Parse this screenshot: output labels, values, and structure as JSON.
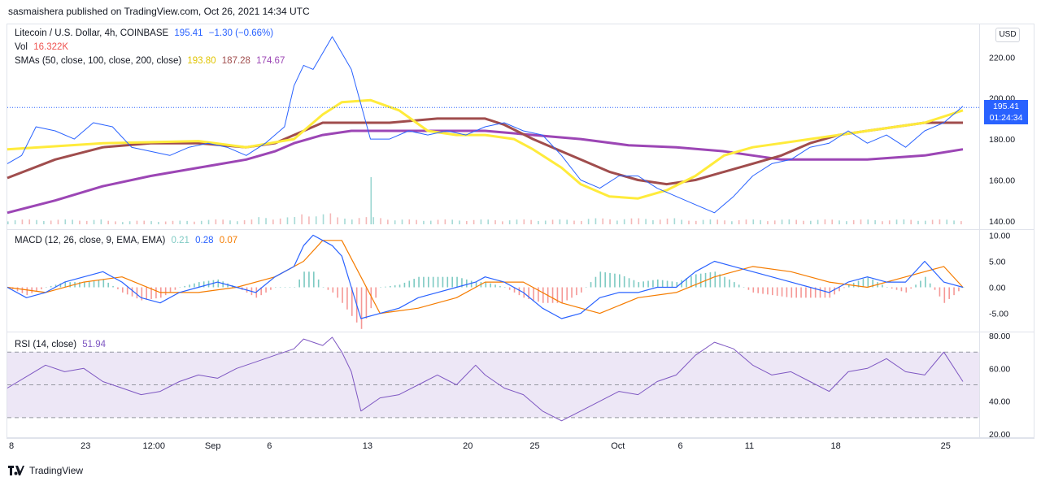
{
  "header": {
    "published": "sasmaishera published on TradingView.com, Oct 26, 2021 14:34 UTC"
  },
  "footer": {
    "brand": "TradingView"
  },
  "price_legend": {
    "symbol": "Litecoin / U.S. Dollar, 4h, COINBASE",
    "last": "195.41",
    "change": "−1.30 (−0.66%)",
    "vol_label": "Vol",
    "vol_value": "16.322K",
    "sma_label": "SMAs (50, close, 100, close, 200, close)",
    "sma50": "193.80",
    "sma100": "187.28",
    "sma200": "174.67"
  },
  "macd_legend": {
    "label": "MACD (12, 26, close, 9, EMA, EMA)",
    "hist": "0.21",
    "macd": "0.28",
    "signal": "0.07"
  },
  "rsi_legend": {
    "label": "RSI (14, close)",
    "value": "51.94"
  },
  "currency_button": "USD",
  "price_tag": {
    "price": "195.41",
    "countdown": "01:24:34"
  },
  "colors": {
    "price_line": "#2962ff",
    "sma50": "#ffeb3b",
    "sma100": "#a04d4d",
    "sma200": "#9c46b5",
    "macd_line": "#2962ff",
    "signal_line": "#f57c00",
    "hist_pos": "#26a69a",
    "hist_neg": "#ef5350",
    "rsi_line": "#7e57c2",
    "rsi_band": "#ede7f6"
  },
  "chart_data": {
    "type": "line",
    "x_tick_labels": [
      "8",
      "23",
      "12:00",
      "Sep",
      "6",
      "13",
      "20",
      "25",
      "Oct",
      "6",
      "11",
      "18",
      "25"
    ],
    "price_axis": {
      "ticks": [
        "220.00",
        "200.00",
        "180.00",
        "160.00",
        "140.00"
      ],
      "range": [
        136,
        236
      ]
    },
    "macd_axis": {
      "ticks": [
        "10.00",
        "5.00",
        "0.00",
        "-5.00"
      ],
      "range": [
        -8.5,
        11
      ]
    },
    "rsi_axis": {
      "ticks": [
        "80.00",
        "60.00",
        "40.00",
        "20.00"
      ],
      "range": [
        18,
        82
      ],
      "bands": [
        30,
        50,
        70
      ]
    },
    "series": [
      {
        "name": "Litecoin / U.S. Dollar",
        "pane": "price",
        "x": [
          0,
          3,
          6,
          10,
          14,
          18,
          22,
          26,
          30,
          34,
          38,
          42,
          46,
          50,
          54,
          58,
          60,
          62,
          64,
          66,
          68,
          70,
          72,
          76,
          80,
          84,
          88,
          92,
          96,
          100,
          104,
          108,
          112,
          116,
          120,
          124,
          128,
          132,
          136,
          140,
          144,
          148,
          152,
          156,
          160,
          164,
          168,
          172,
          176,
          180,
          184,
          188,
          192,
          196,
          200
        ],
        "values": [
          168,
          172,
          186,
          184,
          180,
          188,
          186,
          176,
          174,
          172,
          176,
          178,
          176,
          172,
          178,
          186,
          206,
          216,
          214,
          222,
          230,
          222,
          214,
          180,
          180,
          184,
          182,
          184,
          182,
          186,
          188,
          184,
          182,
          172,
          160,
          156,
          162,
          162,
          156,
          152,
          148,
          144,
          152,
          162,
          168,
          170,
          176,
          178,
          184,
          178,
          182,
          176,
          184,
          188,
          196
        ]
      },
      {
        "name": "SMA 50",
        "pane": "price",
        "x": [
          0,
          20,
          40,
          50,
          60,
          66,
          70,
          76,
          82,
          88,
          94,
          100,
          106,
          110,
          116,
          120,
          126,
          132,
          138,
          144,
          150,
          156,
          162,
          168,
          174,
          180,
          186,
          192,
          200
        ],
        "values": [
          175,
          178,
          179,
          176,
          180,
          192,
          198,
          199,
          194,
          184,
          182,
          182,
          180,
          175,
          166,
          158,
          152,
          151,
          155,
          162,
          172,
          176,
          178,
          180,
          182,
          184,
          186,
          188,
          194
        ]
      },
      {
        "name": "SMA 100",
        "pane": "price",
        "x": [
          0,
          10,
          20,
          30,
          40,
          50,
          56,
          60,
          66,
          72,
          80,
          90,
          100,
          104,
          110,
          116,
          120,
          126,
          132,
          138,
          144,
          150,
          156,
          162,
          168,
          174,
          180,
          186,
          192,
          200
        ],
        "values": [
          161,
          170,
          176,
          178,
          178,
          176,
          178,
          182,
          188,
          188,
          188,
          190,
          190,
          187,
          180,
          174,
          170,
          164,
          160,
          158,
          160,
          164,
          168,
          172,
          178,
          182,
          184,
          186,
          188,
          188
        ]
      },
      {
        "name": "SMA 200",
        "pane": "price",
        "x": [
          0,
          10,
          20,
          30,
          40,
          50,
          56,
          60,
          66,
          72,
          80,
          90,
          100,
          110,
          120,
          130,
          140,
          150,
          156,
          162,
          168,
          174,
          180,
          186,
          192,
          200
        ],
        "values": [
          144,
          150,
          157,
          162,
          166,
          170,
          174,
          178,
          182,
          184,
          184,
          184,
          184,
          182,
          180,
          177,
          176,
          174,
          172,
          170,
          170,
          170,
          170,
          171,
          172,
          175
        ]
      },
      {
        "name": "Volume",
        "pane": "price",
        "x": [
          0,
          20,
          40,
          52,
          60,
          68,
          80,
          100,
          120,
          140,
          160,
          180,
          200
        ],
        "values": [
          2,
          1.5,
          2,
          3,
          4.5,
          3,
          2,
          2,
          2.5,
          2,
          2,
          2,
          1.5
        ]
      },
      {
        "name": "MACD",
        "pane": "macd",
        "x": [
          0,
          4,
          8,
          12,
          16,
          20,
          24,
          28,
          32,
          36,
          40,
          44,
          48,
          52,
          56,
          60,
          62,
          64,
          66,
          68,
          70,
          72,
          74,
          78,
          82,
          86,
          90,
          94,
          98,
          100,
          104,
          108,
          112,
          116,
          120,
          124,
          128,
          132,
          136,
          140,
          144,
          148,
          152,
          156,
          160,
          164,
          168,
          172,
          176,
          180,
          184,
          188,
          192,
          196,
          200
        ],
        "values": [
          0,
          -2,
          -1,
          1,
          2,
          3,
          1,
          -2,
          -3,
          -1,
          0,
          1,
          0,
          -1,
          2,
          4,
          8,
          10,
          9,
          8,
          6,
          0,
          -6,
          -5,
          -4,
          -2,
          -1,
          0,
          1,
          2,
          1,
          -1,
          -4,
          -6,
          -5,
          -2,
          -1,
          -1,
          0,
          0,
          3,
          5,
          4,
          3,
          2,
          1,
          0,
          -1,
          1,
          2,
          1,
          1,
          5,
          1,
          0
        ]
      },
      {
        "name": "Signal",
        "pane": "macd",
        "x": [
          0,
          8,
          16,
          24,
          32,
          40,
          48,
          56,
          62,
          66,
          70,
          74,
          78,
          86,
          94,
          100,
          108,
          116,
          124,
          132,
          140,
          148,
          156,
          164,
          172,
          180,
          188,
          196,
          200
        ],
        "values": [
          0,
          -1,
          1,
          2,
          -1,
          -1,
          0,
          2,
          5,
          9,
          9,
          2,
          -5,
          -4,
          -2,
          1,
          1,
          -3,
          -5,
          -2,
          -1,
          2,
          4,
          3,
          1,
          0,
          2,
          4,
          0
        ]
      },
      {
        "name": "RSI",
        "pane": "rsi",
        "x": [
          0,
          4,
          8,
          12,
          16,
          20,
          24,
          28,
          32,
          36,
          40,
          44,
          48,
          52,
          56,
          60,
          62,
          64,
          66,
          68,
          70,
          72,
          74,
          78,
          82,
          86,
          90,
          94,
          98,
          100,
          104,
          108,
          112,
          116,
          120,
          124,
          128,
          132,
          136,
          140,
          144,
          148,
          152,
          156,
          160,
          164,
          168,
          172,
          176,
          180,
          184,
          188,
          192,
          196,
          200
        ],
        "values": [
          48,
          55,
          62,
          58,
          60,
          52,
          48,
          44,
          46,
          52,
          56,
          54,
          60,
          64,
          68,
          72,
          78,
          76,
          74,
          79,
          70,
          58,
          34,
          42,
          44,
          50,
          56,
          50,
          62,
          56,
          48,
          44,
          34,
          28,
          34,
          40,
          46,
          44,
          52,
          56,
          68,
          76,
          72,
          62,
          56,
          58,
          52,
          46,
          58,
          60,
          66,
          58,
          56,
          70,
          52
        ]
      }
    ]
  }
}
